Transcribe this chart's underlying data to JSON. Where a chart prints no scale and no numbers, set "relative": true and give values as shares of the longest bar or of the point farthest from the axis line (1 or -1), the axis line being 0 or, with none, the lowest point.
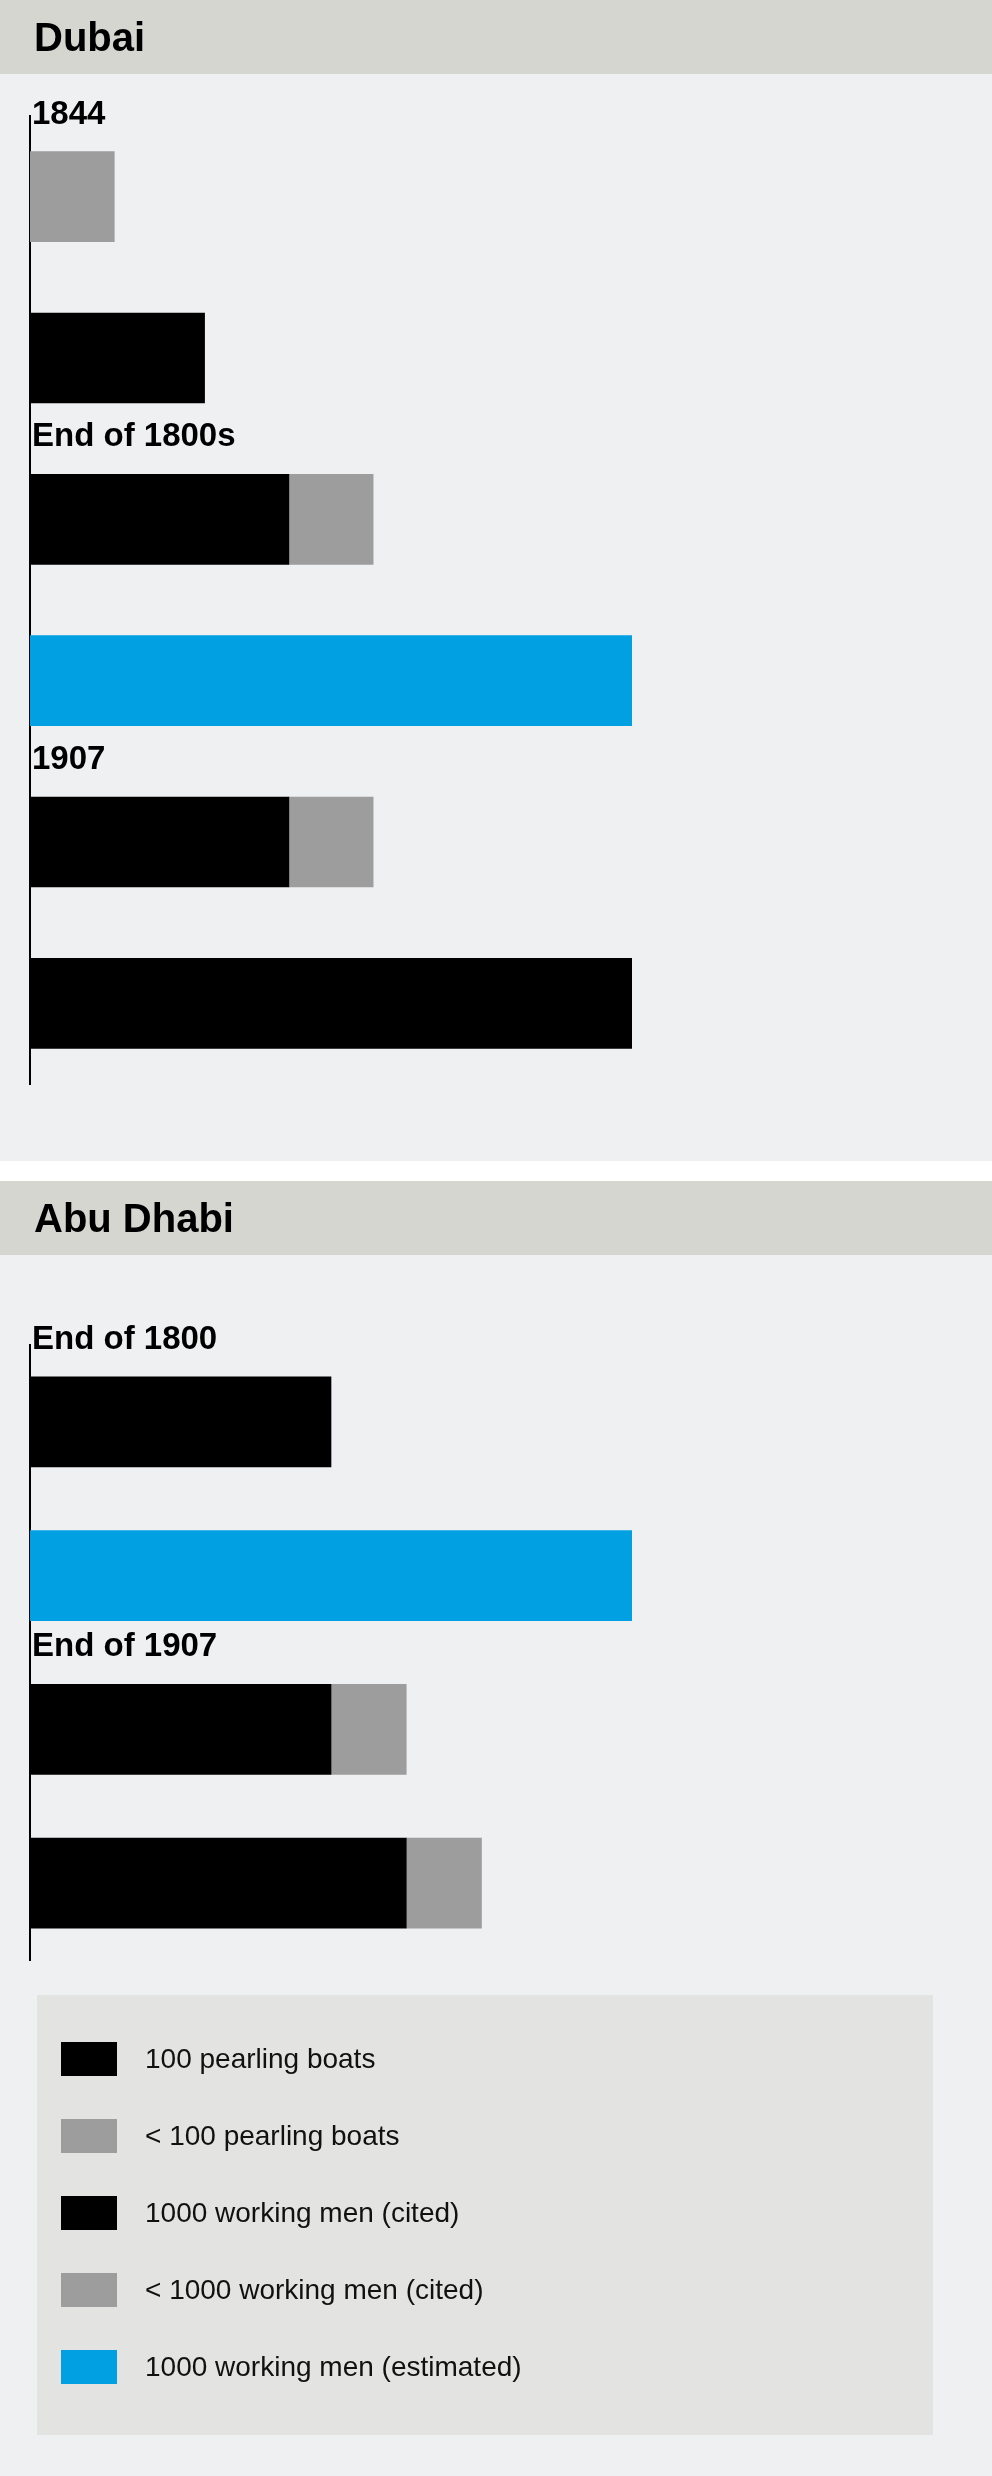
{
  "chart_data": [
    {
      "type": "bar",
      "title": "Dubai",
      "orientation": "horizontal",
      "stacked": true,
      "relative": true,
      "categories": [
        "1844",
        null,
        "End of 1800s",
        null,
        "1907",
        null
      ],
      "series": [
        {
          "color": "#000000",
          "values": [
            null,
            null,
            0.43,
            null,
            0.43,
            null
          ]
        },
        {
          "color": "#9d9d9d",
          "values": [
            0.14,
            null,
            0.14,
            null,
            0.14,
            null
          ]
        },
        {
          "color": "#000000",
          "values": [
            null,
            0.29,
            null,
            null,
            null,
            1
          ]
        },
        {
          "color": "#00a0e3",
          "values": [
            null,
            null,
            null,
            1,
            null,
            null
          ]
        }
      ]
    },
    {
      "type": "bar",
      "title": "Abu Dhabi",
      "orientation": "horizontal",
      "stacked": true,
      "relative": true,
      "legend": "bottom",
      "categories": [
        "End of 1800",
        null,
        "End of 1907",
        null
      ],
      "series": [
        {
          "name": "100 pearling boats",
          "color": "#000000",
          "values": [
            0.5,
            null,
            0.5,
            null
          ]
        },
        {
          "name": "< 100 pearling boats",
          "color": "#9d9d9d",
          "values": [
            null,
            null,
            0.125,
            null
          ]
        },
        {
          "name": "1000 working men (cited)",
          "color": "#000000",
          "values": [
            null,
            null,
            null,
            0.625
          ]
        },
        {
          "name": "< 1000 working men (cited)",
          "color": "#9d9d9d",
          "values": [
            null,
            null,
            null,
            0.125
          ]
        },
        {
          "name": "1000 working men (estimated)",
          "color": "#00a0e3",
          "values": [
            null,
            1,
            null,
            null
          ]
        }
      ]
    }
  ]
}
